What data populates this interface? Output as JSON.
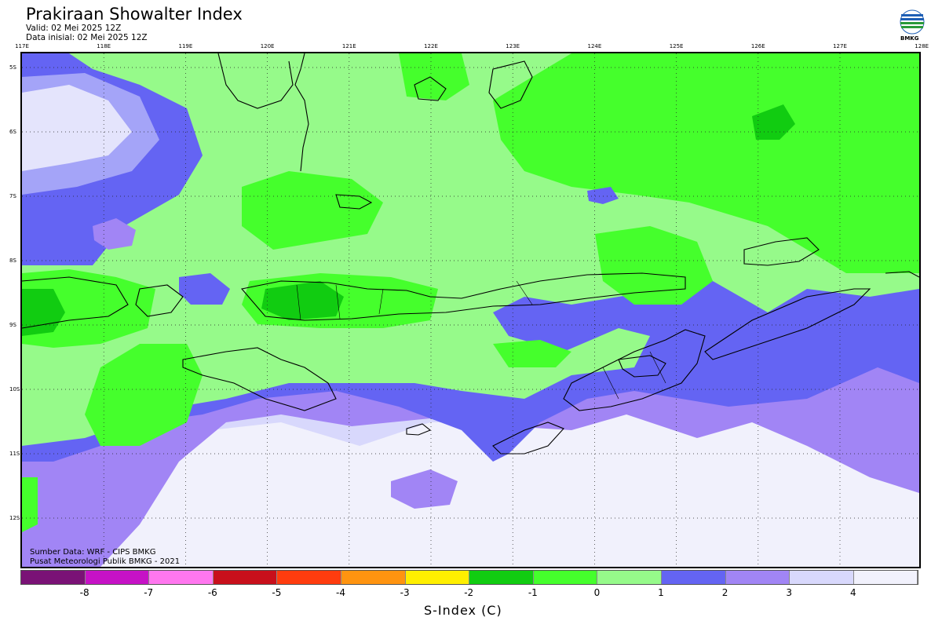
{
  "header": {
    "title": "Prakiraan Showalter Index",
    "valid": "Valid: 02 Mei 2025 12Z",
    "initial": "Data inisial: 02 Mei 2025 12Z",
    "logo_text": "BMKG"
  },
  "map": {
    "lon_labels": [
      "117E",
      "118E",
      "119E",
      "120E",
      "121E",
      "122E",
      "123E",
      "124E",
      "125E",
      "126E",
      "127E",
      "128E"
    ],
    "lat_labels": [
      "5S",
      "6S",
      "7S",
      "8S",
      "9S",
      "10S",
      "11S",
      "12S"
    ],
    "source_1": "Sumber Data: WRF - CIPS BMKG",
    "source_2": "Pusat Meteorologi Publik BMKG - 2021"
  },
  "colorbar": {
    "title": "S-Index (C)",
    "ticks": [
      "-8",
      "-7",
      "-6",
      "-5",
      "-4",
      "-3",
      "-2",
      "-1",
      "0",
      "1",
      "2",
      "3",
      "4"
    ],
    "colors": [
      "#7a1276",
      "#c612c6",
      "#ff77ef",
      "#c80f1b",
      "#ff3c0e",
      "#ff9410",
      "#ffef00",
      "#11cc11",
      "#45ff2c",
      "#96fa8a",
      "#6464f3",
      "#a185f5",
      "#d8d8fc",
      "#f1f1fc"
    ]
  }
}
